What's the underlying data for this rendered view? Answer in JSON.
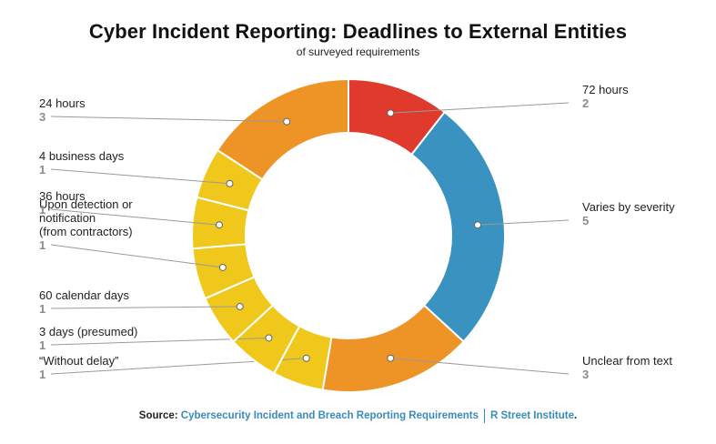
{
  "title": "Cyber Incident Reporting: Deadlines to External Entities",
  "subtitle": "of surveyed requirements",
  "source": {
    "prefix": "Source: ",
    "link_text": "Cybersecurity Incident and Breach Reporting Requirements",
    "org": "R Street Institute",
    "suffix": "."
  },
  "colors": {
    "red": "#e03a2c",
    "blue": "#3a92c0",
    "orange": "#ee9426",
    "yellow": "#f0c81c"
  },
  "chart_data": {
    "type": "pie",
    "donut": true,
    "slices": [
      {
        "label": "72 hours",
        "value": 2,
        "color": "#e03a2c"
      },
      {
        "label": "Varies by severity",
        "value": 5,
        "color": "#3a92c0"
      },
      {
        "label": "Unclear from text",
        "value": 3,
        "color": "#ee9426"
      },
      {
        "label": "“Without delay”",
        "value": 1,
        "color": "#f0c81c"
      },
      {
        "label": "3 days (presumed)",
        "value": 1,
        "color": "#f0c81c"
      },
      {
        "label": "60 calendar days",
        "value": 1,
        "color": "#f0c81c"
      },
      {
        "label": "Upon detection or\nnotification\n(from contractors)",
        "value": 1,
        "color": "#f0c81c"
      },
      {
        "label": "36 hours",
        "value": 1,
        "color": "#f0c81c"
      },
      {
        "label": "4 business days",
        "value": 1,
        "color": "#f0c81c"
      },
      {
        "label": "24 hours",
        "value": 3,
        "color": "#ee9426"
      }
    ]
  }
}
